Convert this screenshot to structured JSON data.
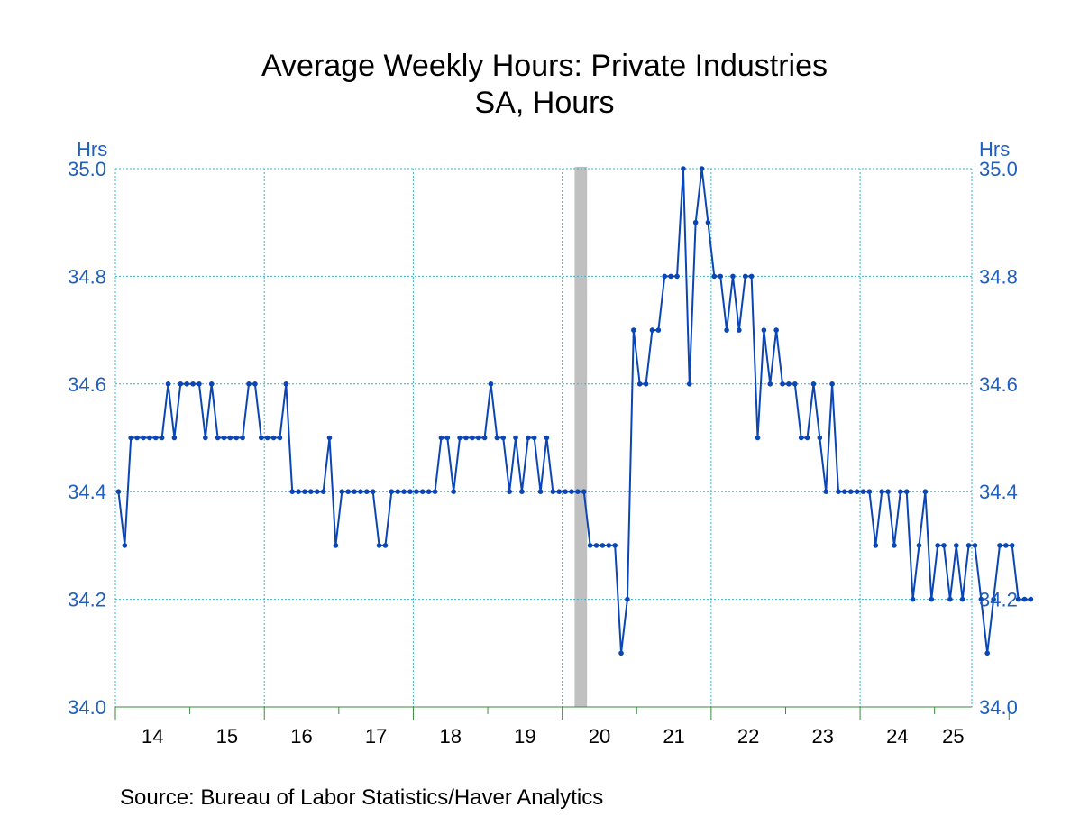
{
  "chart_data": {
    "type": "line",
    "title": "Average Weekly Hours: Private Industries",
    "subtitle": "SA, Hours",
    "ylabel_left": "Hrs",
    "ylabel_right": "Hrs",
    "ylim": [
      34.0,
      35.0
    ],
    "yticks": [
      "34.0",
      "34.2",
      "34.4",
      "34.6",
      "34.8",
      "35.0"
    ],
    "x_start": "2014-01",
    "x_end": "2025-06",
    "xlabels": [
      "14",
      "15",
      "16",
      "17",
      "18",
      "19",
      "20",
      "21",
      "22",
      "23",
      "24",
      "25"
    ],
    "recession": {
      "start": "2020-03",
      "end": "2020-04"
    },
    "grid": true,
    "series": [
      {
        "color": "#0a46b4",
        "values": [
          34.4,
          34.3,
          34.5,
          34.5,
          34.5,
          34.5,
          34.5,
          34.5,
          34.6,
          34.5,
          34.6,
          34.6,
          34.6,
          34.6,
          34.5,
          34.6,
          34.5,
          34.5,
          34.5,
          34.5,
          34.5,
          34.6,
          34.6,
          34.5,
          34.5,
          34.5,
          34.5,
          34.6,
          34.4,
          34.4,
          34.4,
          34.4,
          34.4,
          34.4,
          34.5,
          34.3,
          34.4,
          34.4,
          34.4,
          34.4,
          34.4,
          34.4,
          34.3,
          34.3,
          34.4,
          34.4,
          34.4,
          34.4,
          34.4,
          34.4,
          34.4,
          34.4,
          34.5,
          34.5,
          34.4,
          34.5,
          34.5,
          34.5,
          34.5,
          34.5,
          34.6,
          34.5,
          34.5,
          34.4,
          34.5,
          34.4,
          34.5,
          34.5,
          34.4,
          34.5,
          34.4,
          34.4,
          34.4,
          34.4,
          34.4,
          34.4,
          34.3,
          34.3,
          34.3,
          34.3,
          34.3,
          34.1,
          34.2,
          34.7,
          34.6,
          34.6,
          34.7,
          34.7,
          34.8,
          34.8,
          34.8,
          35.0,
          34.6,
          34.9,
          35.0,
          34.9,
          34.8,
          34.8,
          34.7,
          34.8,
          34.7,
          34.8,
          34.8,
          34.5,
          34.7,
          34.6,
          34.7,
          34.6,
          34.6,
          34.6,
          34.5,
          34.5,
          34.6,
          34.5,
          34.4,
          34.6,
          34.4,
          34.4,
          34.4,
          34.4,
          34.4,
          34.4,
          34.3,
          34.4,
          34.4,
          34.3,
          34.4,
          34.4,
          34.2,
          34.3,
          34.4,
          34.2,
          34.3,
          34.3,
          34.2,
          34.3,
          34.2,
          34.3,
          34.3,
          34.2,
          34.1,
          34.2,
          34.3,
          34.3,
          34.3,
          34.2,
          34.2,
          34.2
        ]
      }
    ]
  },
  "source": "Source:  Bureau of Labor Statistics/Haver Analytics",
  "colors": {
    "line": "#0a46b4",
    "axis_text": "#1f5fbf",
    "grid": "#33b5c9",
    "axis": "#3a8a3a",
    "recession": "#c0c0c0"
  }
}
